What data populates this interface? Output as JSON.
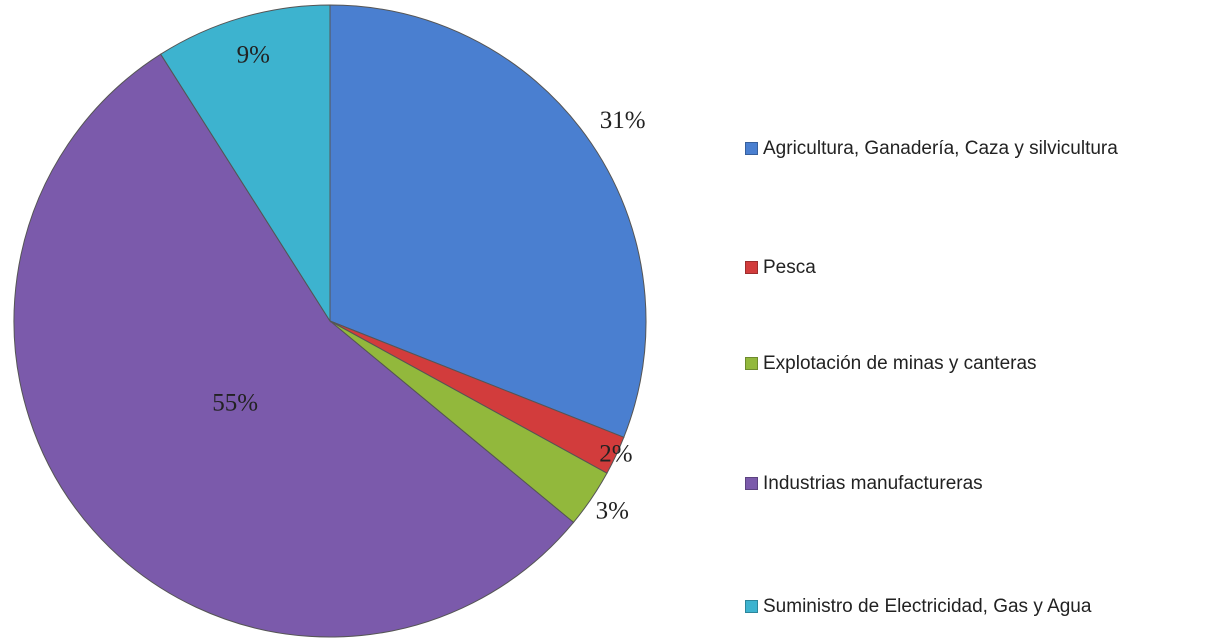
{
  "chart_data": {
    "type": "pie",
    "categories": [
      "Agricultura, Ganadería, Caza y silvicultura",
      "Pesca",
      "Explotación de minas y canteras",
      "Industrias manufactureras",
      "Suministro de Electricidad, Gas y Agua"
    ],
    "values": [
      31,
      2,
      3,
      55,
      9
    ],
    "value_labels": [
      "31%",
      "2%",
      "3%",
      "55%",
      "9%"
    ],
    "colors": [
      "#4a7fd0",
      "#d23c3c",
      "#92b83c",
      "#7b5aab",
      "#3db3cf"
    ],
    "legend": "right"
  }
}
